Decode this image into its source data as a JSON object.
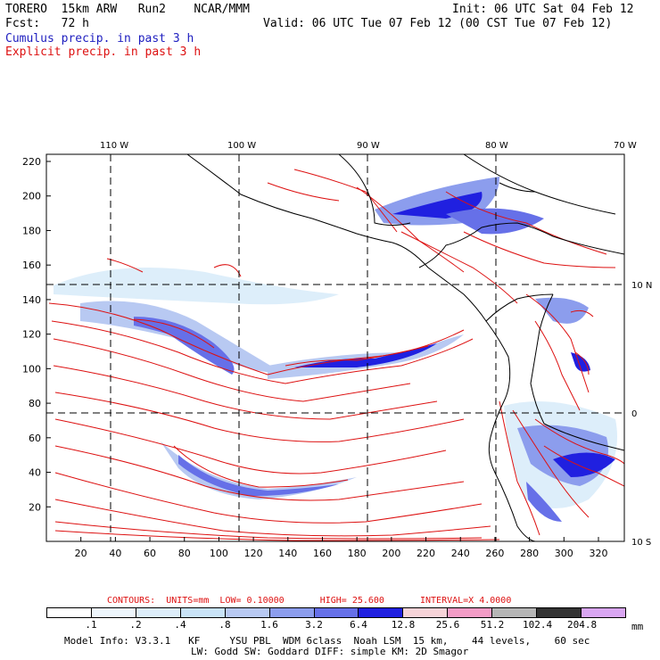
{
  "header": {
    "model": "TORERO  15km ARW   Run2    NCAR/MMM",
    "init": "Init: 06 UTC Sat 04 Feb 12",
    "fcst": "Fcst:   72 h",
    "valid": "Valid: 06 UTC Tue 07 Feb 12 (00 CST Tue 07 Feb 12)",
    "field1": "Cumulus precip. in past 3 h",
    "field2": "Explicit precip. in past 3 h"
  },
  "map": {
    "lon_labels": [
      "110 W",
      "100 W",
      "90 W",
      "80 W",
      "70 W"
    ],
    "lat_labels": [
      "10 N",
      "0",
      "10 S"
    ],
    "y_ticks": [
      "20",
      "40",
      "60",
      "80",
      "100",
      "120",
      "140",
      "160",
      "180",
      "200",
      "220"
    ],
    "x_ticks": [
      "20",
      "40",
      "60",
      "80",
      "100",
      "120",
      "140",
      "160",
      "180",
      "200",
      "220",
      "240",
      "260",
      "280",
      "300",
      "320"
    ]
  },
  "contour_info": {
    "contours": "CONTOURS:",
    "units": "UNITS=mm",
    "low": "LOW= 0.10000",
    "high": "HIGH=  25.600",
    "interval": "INTERVAL=X  4.0000"
  },
  "colorbar": {
    "labels": [
      ".1",
      ".2",
      ".4",
      ".8",
      "1.6",
      "3.2",
      "6.4",
      "12.8",
      "25.6",
      "51.2",
      "102.4",
      "204.8"
    ],
    "unit": "mm",
    "colors": [
      "#ffffff",
      "#eef6fc",
      "#ddeefa",
      "#c9e3f7",
      "#b8c9f2",
      "#8c9ded",
      "#6670e8",
      "#2020e0",
      "#f6d3d8",
      "#f39cc6",
      "#b6b6b6",
      "#333333",
      "#d9a6f2"
    ]
  },
  "footer": {
    "line1": "Model Info: V3.3.1   KF     YSU PBL  WDM 6class  Noah LSM  15 km,    44 levels,    60 sec",
    "line2": "LW: Godd SW: Goddard DIFF: simple KM: 2D Smagor"
  }
}
